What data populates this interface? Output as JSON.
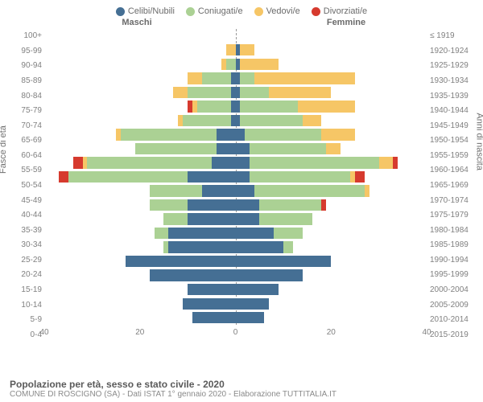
{
  "chart": {
    "type": "population-pyramid",
    "legend": [
      {
        "label": "Celibi/Nubili",
        "color": "#456f94"
      },
      {
        "label": "Coniugati/e",
        "color": "#abd194"
      },
      {
        "label": "Vedovi/e",
        "color": "#f6c666"
      },
      {
        "label": "Divorziati/e",
        "color": "#d63a2e"
      }
    ],
    "header_male": "Maschi",
    "header_female": "Femmine",
    "y_title_left": "Fasce di età",
    "y_title_right": "Anni di nascita",
    "x_max": 40,
    "x_ticks": [
      40,
      20,
      0,
      20,
      40
    ],
    "bar_gap_ratio": 0.18,
    "colors": {
      "single": "#456f94",
      "married": "#abd194",
      "widowed": "#f6c666",
      "divorced": "#d63a2e",
      "grid": "#9a9a9a",
      "text": "#6b6b6b",
      "background": "#ffffff"
    },
    "fontsize": {
      "legend": 11,
      "axis": 10,
      "header": 11,
      "title": 12,
      "sub": 10
    },
    "rows": [
      {
        "age": "100+",
        "birth": "≤ 1919",
        "m": {
          "s": 0,
          "m": 0,
          "w": 0,
          "d": 0
        },
        "f": {
          "s": 0,
          "m": 0,
          "w": 0,
          "d": 0
        }
      },
      {
        "age": "95-99",
        "birth": "1920-1924",
        "m": {
          "s": 0,
          "m": 0,
          "w": 2,
          "d": 0
        },
        "f": {
          "s": 1,
          "m": 0,
          "w": 3,
          "d": 0
        }
      },
      {
        "age": "90-94",
        "birth": "1925-1929",
        "m": {
          "s": 0,
          "m": 2,
          "w": 1,
          "d": 0
        },
        "f": {
          "s": 1,
          "m": 0,
          "w": 8,
          "d": 0
        }
      },
      {
        "age": "85-89",
        "birth": "1930-1934",
        "m": {
          "s": 1,
          "m": 6,
          "w": 3,
          "d": 0
        },
        "f": {
          "s": 1,
          "m": 3,
          "w": 21,
          "d": 0
        }
      },
      {
        "age": "80-84",
        "birth": "1935-1939",
        "m": {
          "s": 1,
          "m": 9,
          "w": 3,
          "d": 0
        },
        "f": {
          "s": 1,
          "m": 6,
          "w": 13,
          "d": 0
        }
      },
      {
        "age": "75-79",
        "birth": "1940-1944",
        "m": {
          "s": 1,
          "m": 7,
          "w": 1,
          "d": 1
        },
        "f": {
          "s": 1,
          "m": 12,
          "w": 12,
          "d": 0
        }
      },
      {
        "age": "70-74",
        "birth": "1945-1949",
        "m": {
          "s": 1,
          "m": 10,
          "w": 1,
          "d": 0
        },
        "f": {
          "s": 1,
          "m": 13,
          "w": 4,
          "d": 0
        }
      },
      {
        "age": "65-69",
        "birth": "1950-1954",
        "m": {
          "s": 4,
          "m": 20,
          "w": 1,
          "d": 0
        },
        "f": {
          "s": 2,
          "m": 16,
          "w": 7,
          "d": 0
        }
      },
      {
        "age": "60-64",
        "birth": "1955-1959",
        "m": {
          "s": 4,
          "m": 17,
          "w": 0,
          "d": 0
        },
        "f": {
          "s": 3,
          "m": 16,
          "w": 3,
          "d": 0
        }
      },
      {
        "age": "55-59",
        "birth": "1960-1964",
        "m": {
          "s": 5,
          "m": 26,
          "w": 1,
          "d": 2
        },
        "f": {
          "s": 3,
          "m": 27,
          "w": 3,
          "d": 1
        }
      },
      {
        "age": "50-54",
        "birth": "1965-1969",
        "m": {
          "s": 10,
          "m": 25,
          "w": 0,
          "d": 2
        },
        "f": {
          "s": 3,
          "m": 21,
          "w": 1,
          "d": 2
        }
      },
      {
        "age": "45-49",
        "birth": "1970-1974",
        "m": {
          "s": 7,
          "m": 11,
          "w": 0,
          "d": 0
        },
        "f": {
          "s": 4,
          "m": 23,
          "w": 1,
          "d": 0
        }
      },
      {
        "age": "40-44",
        "birth": "1975-1979",
        "m": {
          "s": 10,
          "m": 8,
          "w": 0,
          "d": 0
        },
        "f": {
          "s": 5,
          "m": 13,
          "w": 0,
          "d": 1
        }
      },
      {
        "age": "35-39",
        "birth": "1980-1984",
        "m": {
          "s": 10,
          "m": 5,
          "w": 0,
          "d": 0
        },
        "f": {
          "s": 5,
          "m": 11,
          "w": 0,
          "d": 0
        }
      },
      {
        "age": "30-34",
        "birth": "1985-1989",
        "m": {
          "s": 14,
          "m": 3,
          "w": 0,
          "d": 0
        },
        "f": {
          "s": 8,
          "m": 6,
          "w": 0,
          "d": 0
        }
      },
      {
        "age": "25-29",
        "birth": "1990-1994",
        "m": {
          "s": 14,
          "m": 1,
          "w": 0,
          "d": 0
        },
        "f": {
          "s": 10,
          "m": 2,
          "w": 0,
          "d": 0
        }
      },
      {
        "age": "20-24",
        "birth": "1995-1999",
        "m": {
          "s": 23,
          "m": 0,
          "w": 0,
          "d": 0
        },
        "f": {
          "s": 20,
          "m": 0,
          "w": 0,
          "d": 0
        }
      },
      {
        "age": "15-19",
        "birth": "2000-2004",
        "m": {
          "s": 18,
          "m": 0,
          "w": 0,
          "d": 0
        },
        "f": {
          "s": 14,
          "m": 0,
          "w": 0,
          "d": 0
        }
      },
      {
        "age": "10-14",
        "birth": "2005-2009",
        "m": {
          "s": 10,
          "m": 0,
          "w": 0,
          "d": 0
        },
        "f": {
          "s": 9,
          "m": 0,
          "w": 0,
          "d": 0
        }
      },
      {
        "age": "5-9",
        "birth": "2010-2014",
        "m": {
          "s": 11,
          "m": 0,
          "w": 0,
          "d": 0
        },
        "f": {
          "s": 7,
          "m": 0,
          "w": 0,
          "d": 0
        }
      },
      {
        "age": "0-4",
        "birth": "2015-2019",
        "m": {
          "s": 9,
          "m": 0,
          "w": 0,
          "d": 0
        },
        "f": {
          "s": 6,
          "m": 0,
          "w": 0,
          "d": 0
        }
      }
    ]
  },
  "footer": {
    "title": "Popolazione per età, sesso e stato civile - 2020",
    "subtitle": "COMUNE DI ROSCIGNO (SA) - Dati ISTAT 1° gennaio 2020 - Elaborazione TUTTITALIA.IT"
  }
}
